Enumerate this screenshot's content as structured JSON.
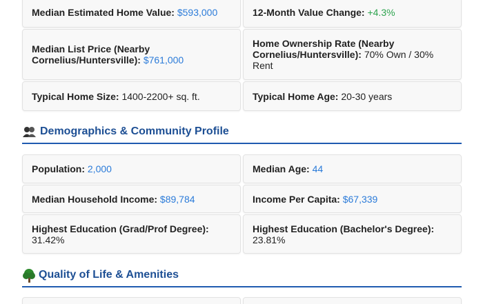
{
  "sections": [
    {
      "cards": [
        {
          "label": "Median Estimated Home Value:",
          "value": "$593,000",
          "color": "#2b7bd9"
        },
        {
          "label": "12-Month Value Change:",
          "value": "+4.3%",
          "color": "#2ea44f"
        },
        {
          "label": "Median List Price (Nearby Cornelius/Huntersville):",
          "value": "$761,000",
          "color": "#2b7bd9"
        },
        {
          "label": "Home Ownership Rate (Nearby Cornelius/Huntersville):",
          "value": "70% Own / 30% Rent",
          "color": "#222222"
        },
        {
          "label": "Typical Home Size:",
          "value": "1400-2200+ sq. ft.",
          "color": "#222222"
        },
        {
          "label": "Typical Home Age:",
          "value": "20-30 years",
          "color": "#222222"
        }
      ]
    },
    {
      "heading": "Demographics & Community Profile",
      "cards": [
        {
          "label": "Population:",
          "value": "2,000",
          "color": "#2b7bd9"
        },
        {
          "label": "Median Age:",
          "value": "44",
          "color": "#2b7bd9"
        },
        {
          "label": "Median Household Income:",
          "value": "$89,784",
          "color": "#2b7bd9"
        },
        {
          "label": "Income Per Capita:",
          "value": "$67,339",
          "color": "#2b7bd9"
        },
        {
          "label": "Highest Education (Grad/Prof Degree):",
          "value": "31.42%",
          "color": "#222222"
        },
        {
          "label": "Highest Education (Bachelor's Degree):",
          "value": "23.81%",
          "color": "#222222"
        }
      ]
    },
    {
      "heading": "Quality of Life & Amenities"
    }
  ]
}
